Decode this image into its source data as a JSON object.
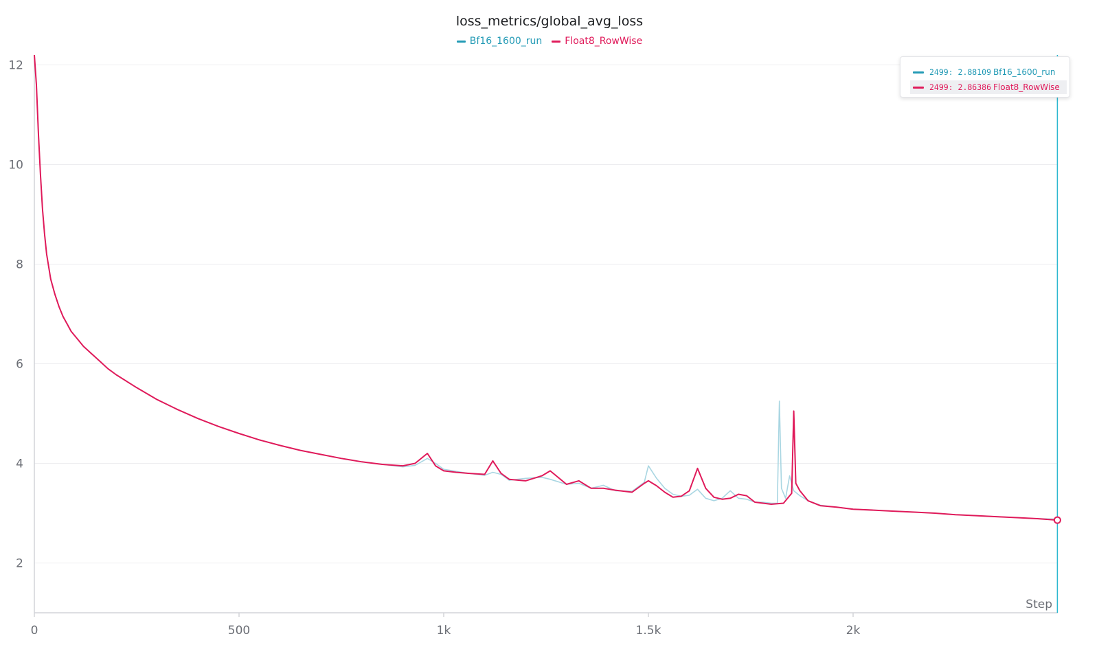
{
  "chart_data": {
    "type": "line",
    "title": "loss_metrics/global_avg_loss",
    "xlabel": "Step",
    "ylabel": "",
    "xlim": [
      0,
      2500
    ],
    "ylim": [
      1,
      12.2
    ],
    "xticks": [
      0,
      500,
      1000,
      1500,
      2000
    ],
    "xtick_labels": [
      "0",
      "500",
      "1k",
      "1.5k",
      "2k"
    ],
    "yticks": [
      2,
      4,
      6,
      8,
      10,
      12
    ],
    "ytick_labels": [
      "2",
      "4",
      "6",
      "8",
      "10",
      "12"
    ],
    "grid": true,
    "legend_position": "top-center",
    "series": [
      {
        "name": "Bf16_1600_run",
        "color": "#a9d6e2",
        "legend_color": "#229ab5",
        "x": [
          0,
          5,
          10,
          15,
          20,
          25,
          30,
          40,
          50,
          60,
          70,
          80,
          90,
          100,
          120,
          140,
          160,
          180,
          200,
          250,
          300,
          350,
          400,
          450,
          500,
          550,
          600,
          650,
          700,
          750,
          800,
          850,
          900,
          930,
          960,
          980,
          1000,
          1030,
          1060,
          1100,
          1120,
          1140,
          1160,
          1200,
          1240,
          1260,
          1300,
          1330,
          1360,
          1390,
          1420,
          1460,
          1490,
          1500,
          1520,
          1540,
          1560,
          1580,
          1600,
          1620,
          1640,
          1660,
          1680,
          1700,
          1720,
          1740,
          1760,
          1780,
          1800,
          1815,
          1820,
          1825,
          1835,
          1845,
          1855,
          1870,
          1890,
          1920,
          1960,
          2000,
          2050,
          2100,
          2150,
          2200,
          2250,
          2300,
          2350,
          2400,
          2450,
          2499
        ],
        "y": [
          12.2,
          11.6,
          10.6,
          9.8,
          9.1,
          8.6,
          8.2,
          7.7,
          7.4,
          7.15,
          6.95,
          6.8,
          6.65,
          6.55,
          6.35,
          6.2,
          6.05,
          5.9,
          5.78,
          5.52,
          5.28,
          5.08,
          4.9,
          4.74,
          4.6,
          4.47,
          4.36,
          4.26,
          4.18,
          4.1,
          4.03,
          3.98,
          3.93,
          3.96,
          4.1,
          4.0,
          3.88,
          3.84,
          3.8,
          3.76,
          3.82,
          3.78,
          3.66,
          3.7,
          3.72,
          3.68,
          3.58,
          3.6,
          3.5,
          3.56,
          3.45,
          3.44,
          3.62,
          3.95,
          3.7,
          3.5,
          3.38,
          3.34,
          3.36,
          3.48,
          3.3,
          3.25,
          3.3,
          3.45,
          3.3,
          3.28,
          3.22,
          3.22,
          3.2,
          3.2,
          5.25,
          3.5,
          3.3,
          3.75,
          3.45,
          3.35,
          3.25,
          3.16,
          3.12,
          3.08,
          3.06,
          3.04,
          3.02,
          3.0,
          2.97,
          2.95,
          2.93,
          2.91,
          2.89,
          2.88
        ]
      },
      {
        "name": "Float8_RowWise",
        "color": "#e01a5a",
        "legend_color": "#e01a5a",
        "x": [
          0,
          5,
          10,
          15,
          20,
          25,
          30,
          40,
          50,
          60,
          70,
          80,
          90,
          100,
          120,
          140,
          160,
          180,
          200,
          250,
          300,
          350,
          400,
          450,
          500,
          550,
          600,
          650,
          700,
          750,
          800,
          850,
          900,
          930,
          960,
          980,
          1000,
          1030,
          1060,
          1100,
          1120,
          1140,
          1160,
          1200,
          1240,
          1260,
          1300,
          1330,
          1360,
          1390,
          1420,
          1460,
          1490,
          1500,
          1520,
          1540,
          1560,
          1580,
          1600,
          1620,
          1640,
          1660,
          1680,
          1700,
          1720,
          1740,
          1760,
          1780,
          1800,
          1830,
          1850,
          1855,
          1860,
          1870,
          1890,
          1920,
          1960,
          2000,
          2050,
          2100,
          2150,
          2200,
          2250,
          2300,
          2350,
          2400,
          2450,
          2499
        ],
        "y": [
          12.2,
          11.6,
          10.6,
          9.8,
          9.1,
          8.6,
          8.2,
          7.7,
          7.4,
          7.15,
          6.95,
          6.8,
          6.65,
          6.55,
          6.35,
          6.2,
          6.05,
          5.9,
          5.78,
          5.52,
          5.28,
          5.08,
          4.9,
          4.74,
          4.6,
          4.47,
          4.36,
          4.26,
          4.18,
          4.1,
          4.03,
          3.98,
          3.95,
          4.0,
          4.2,
          3.95,
          3.85,
          3.82,
          3.8,
          3.78,
          4.05,
          3.8,
          3.68,
          3.65,
          3.75,
          3.85,
          3.58,
          3.65,
          3.5,
          3.5,
          3.46,
          3.42,
          3.6,
          3.65,
          3.55,
          3.42,
          3.32,
          3.34,
          3.45,
          3.9,
          3.5,
          3.32,
          3.28,
          3.3,
          3.38,
          3.35,
          3.22,
          3.2,
          3.18,
          3.2,
          3.4,
          5.05,
          3.6,
          3.45,
          3.25,
          3.15,
          3.12,
          3.08,
          3.06,
          3.04,
          3.02,
          3.0,
          2.97,
          2.95,
          2.93,
          2.91,
          2.89,
          2.86
        ]
      }
    ],
    "hover": {
      "step": 2499,
      "rows": [
        {
          "label": "2499: 2.88109",
          "name": "Bf16_1600_run"
        },
        {
          "label": "2499: 2.86386",
          "name": "Float8_RowWise"
        }
      ]
    }
  }
}
